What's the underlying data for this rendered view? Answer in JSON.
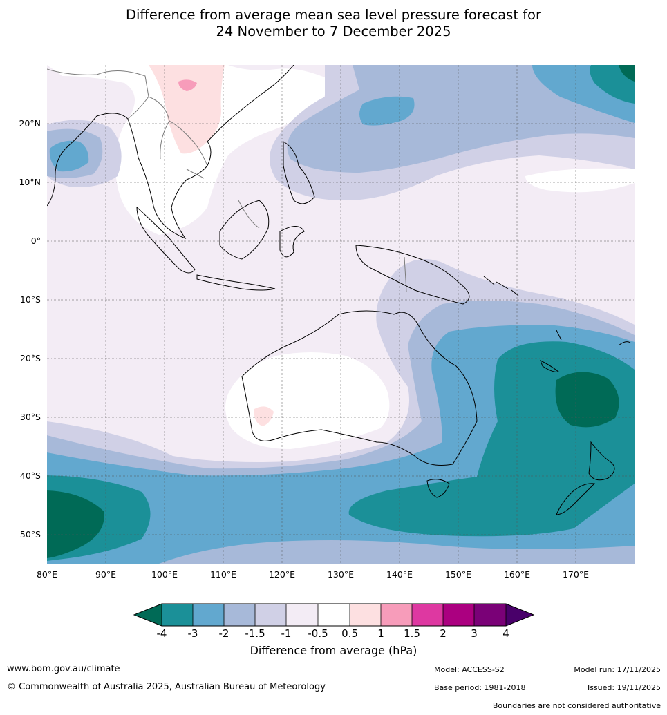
{
  "title": {
    "line1": "Difference from average mean sea level pressure forecast for",
    "line2": "24 November to 7 December 2025"
  },
  "map": {
    "lon_ticks": [
      "80°E",
      "90°E",
      "100°E",
      "110°E",
      "120°E",
      "130°E",
      "140°E",
      "150°E",
      "160°E",
      "170°E"
    ],
    "lat_ticks": [
      "20°N",
      "10°N",
      "0°",
      "10°S",
      "20°S",
      "30°S",
      "40°S",
      "50°S"
    ],
    "ocean_color": "#f3ecf5",
    "coast_color": "#000000",
    "border_color": "#7a7a7a"
  },
  "colorbar": {
    "ticks": [
      "-4",
      "-3",
      "-2",
      "-1.5",
      "-1",
      "-0.5",
      "0.5",
      "1",
      "1.5",
      "2",
      "3",
      "4"
    ],
    "colors": [
      "#006a56",
      "#1b9098",
      "#62a8cf",
      "#a7b9d9",
      "#d0d0e6",
      "#f3ecf5",
      "#ffffff",
      "#fde0e1",
      "#f79cba",
      "#de38a1",
      "#ab0080",
      "#7a0177",
      "#49006a"
    ],
    "title": "Difference from average (hPa)"
  },
  "footer": {
    "website": "www.bom.gov.au/climate",
    "copyright": "© Commonwealth of Australia 2025, Australian Bureau of Meteorology",
    "model": "Model: ACCESS-S2",
    "model_run": "Model run: 17/11/2025",
    "base_period": "Base period: 1981-2018",
    "issued": "Issued: 19/11/2025",
    "boundaries": "Boundaries are not considered authoritative"
  }
}
